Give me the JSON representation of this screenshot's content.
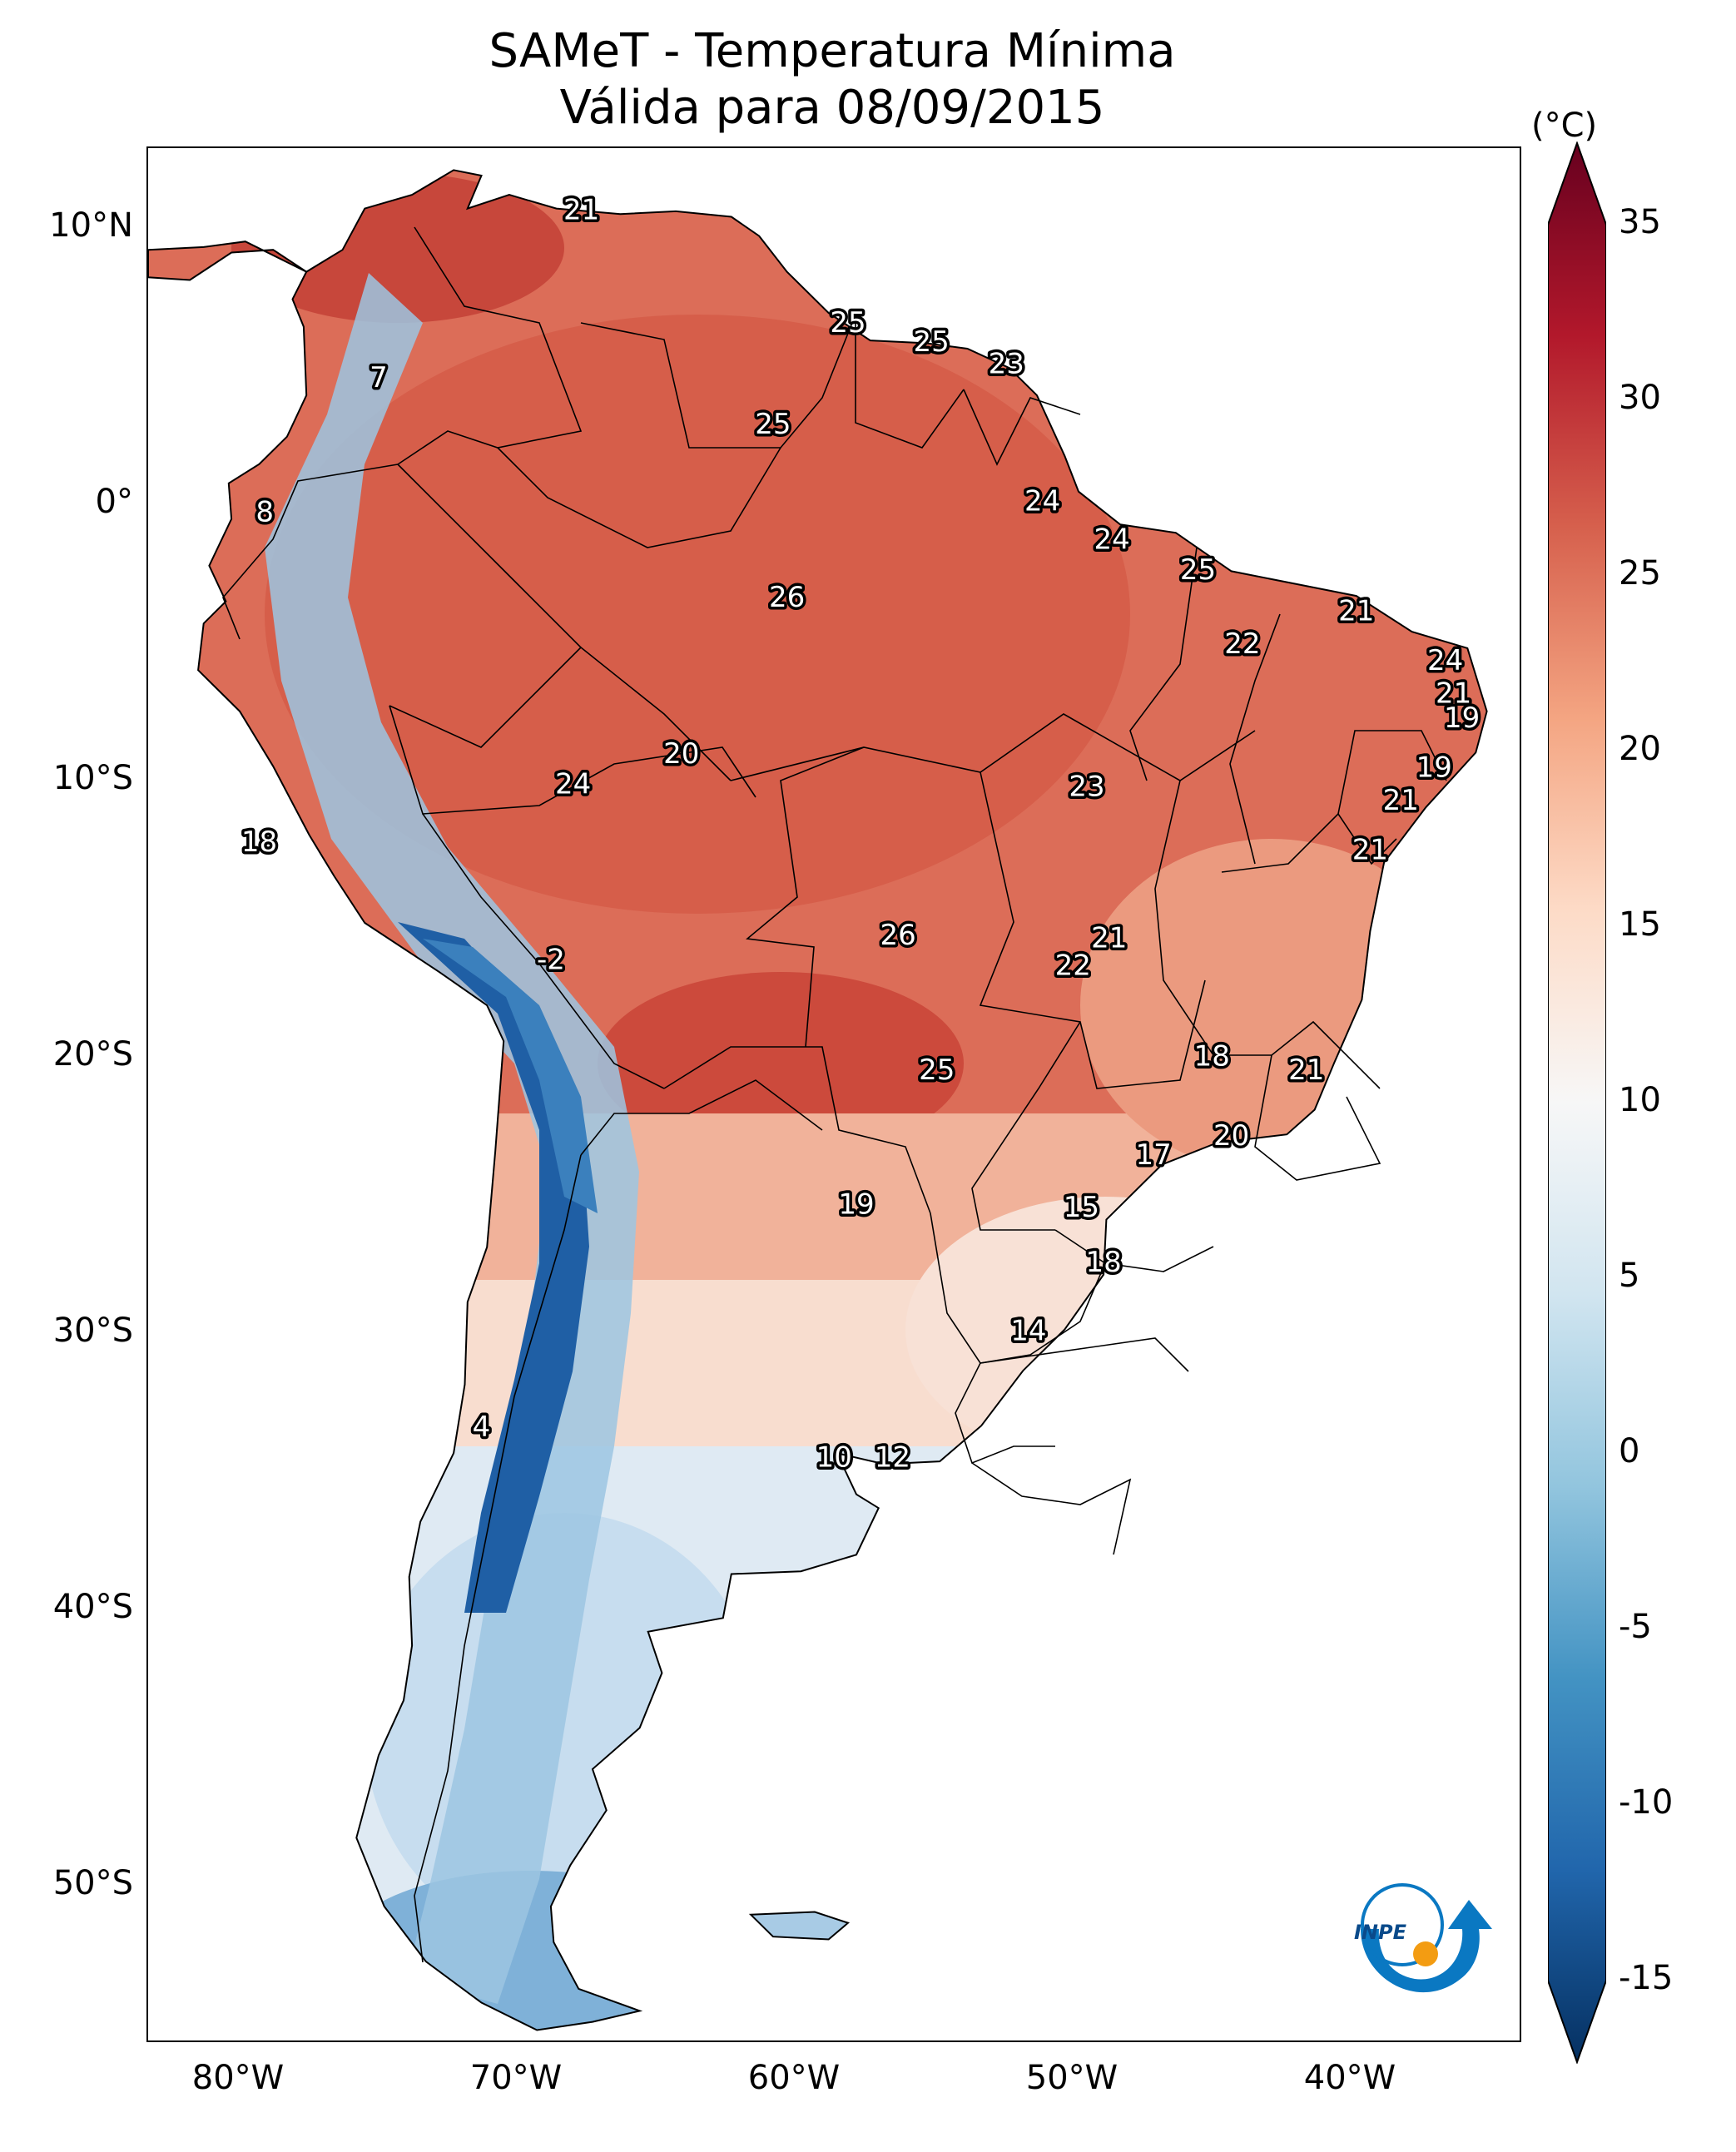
{
  "title": {
    "line1": "SAMeT - Temperatura Mínima",
    "line2": "Válida para 08/09/2015"
  },
  "axes": {
    "lat_labels": [
      "10°N",
      "0°",
      "10°S",
      "20°S",
      "30°S",
      "40°S",
      "50°S"
    ],
    "lon_labels": [
      "80°W",
      "70°W",
      "60°W",
      "50°W",
      "40°W"
    ],
    "lat_values": [
      10,
      0,
      -10,
      -20,
      -30,
      -40,
      -50
    ],
    "lon_values": [
      -80,
      -70,
      -60,
      -50,
      -40
    ],
    "lon_range": [
      -83,
      -33.5
    ],
    "lat_range": [
      -56,
      13
    ]
  },
  "colorbar": {
    "unit": "(°C)",
    "tick_labels": [
      "35",
      "30",
      "25",
      "20",
      "15",
      "10",
      "5",
      "0",
      "-5",
      "-10",
      "-15"
    ],
    "tick_values": [
      35,
      30,
      25,
      20,
      15,
      10,
      5,
      0,
      -5,
      -10,
      -15
    ],
    "range": [
      -15,
      35
    ],
    "colors": [
      "#053061",
      "#2166ac",
      "#4393c3",
      "#92c5de",
      "#d1e5f0",
      "#f7f7f7",
      "#fddbc7",
      "#f4a582",
      "#d6604d",
      "#b2182b",
      "#67001f"
    ]
  },
  "map_labels": [
    {
      "text": "21",
      "lon": -67.4,
      "lat": 10.7
    },
    {
      "text": "25",
      "lon": -57.8,
      "lat": 6.6
    },
    {
      "text": "25",
      "lon": -54.8,
      "lat": 5.9
    },
    {
      "text": "23",
      "lon": -52.1,
      "lat": 5.1
    },
    {
      "text": "7",
      "lon": -74.7,
      "lat": 4.6
    },
    {
      "text": "25",
      "lon": -60.5,
      "lat": 2.9
    },
    {
      "text": "8",
      "lon": -78.8,
      "lat": -0.3
    },
    {
      "text": "24",
      "lon": -50.8,
      "lat": 0.1
    },
    {
      "text": "24",
      "lon": -48.3,
      "lat": -1.3
    },
    {
      "text": "25",
      "lon": -45.2,
      "lat": -2.4
    },
    {
      "text": "26",
      "lon": -60.0,
      "lat": -3.4
    },
    {
      "text": "21",
      "lon": -39.5,
      "lat": -3.9
    },
    {
      "text": "22",
      "lon": -43.6,
      "lat": -5.1
    },
    {
      "text": "24",
      "lon": -36.3,
      "lat": -5.7
    },
    {
      "text": "21",
      "lon": -36.0,
      "lat": -6.9
    },
    {
      "text": "19",
      "lon": -35.7,
      "lat": -7.8
    },
    {
      "text": "20",
      "lon": -63.8,
      "lat": -9.1
    },
    {
      "text": "19",
      "lon": -36.7,
      "lat": -9.6
    },
    {
      "text": "24",
      "lon": -67.7,
      "lat": -10.2
    },
    {
      "text": "23",
      "lon": -49.2,
      "lat": -10.3
    },
    {
      "text": "21",
      "lon": -37.9,
      "lat": -10.8
    },
    {
      "text": "18",
      "lon": -79.0,
      "lat": -12.3
    },
    {
      "text": "21",
      "lon": -39.0,
      "lat": -12.6
    },
    {
      "text": "26",
      "lon": -56.0,
      "lat": -15.7
    },
    {
      "text": "21",
      "lon": -48.4,
      "lat": -15.8
    },
    {
      "text": "-2",
      "lon": -68.5,
      "lat": -16.6
    },
    {
      "text": "22",
      "lon": -49.7,
      "lat": -16.8
    },
    {
      "text": "18",
      "lon": -44.7,
      "lat": -20.1
    },
    {
      "text": "25",
      "lon": -54.6,
      "lat": -20.6
    },
    {
      "text": "21",
      "lon": -41.3,
      "lat": -20.6
    },
    {
      "text": "20",
      "lon": -44.0,
      "lat": -23.0
    },
    {
      "text": "17",
      "lon": -46.8,
      "lat": -23.7
    },
    {
      "text": "19",
      "lon": -57.5,
      "lat": -25.5
    },
    {
      "text": "15",
      "lon": -49.4,
      "lat": -25.6
    },
    {
      "text": "18",
      "lon": -48.6,
      "lat": -27.6
    },
    {
      "text": "14",
      "lon": -51.3,
      "lat": -30.1
    },
    {
      "text": "4",
      "lon": -71.0,
      "lat": -33.6
    },
    {
      "text": "10",
      "lon": -58.3,
      "lat": -34.7
    },
    {
      "text": "12",
      "lon": -56.2,
      "lat": -34.7
    }
  ],
  "logo": {
    "text": "INPE"
  }
}
